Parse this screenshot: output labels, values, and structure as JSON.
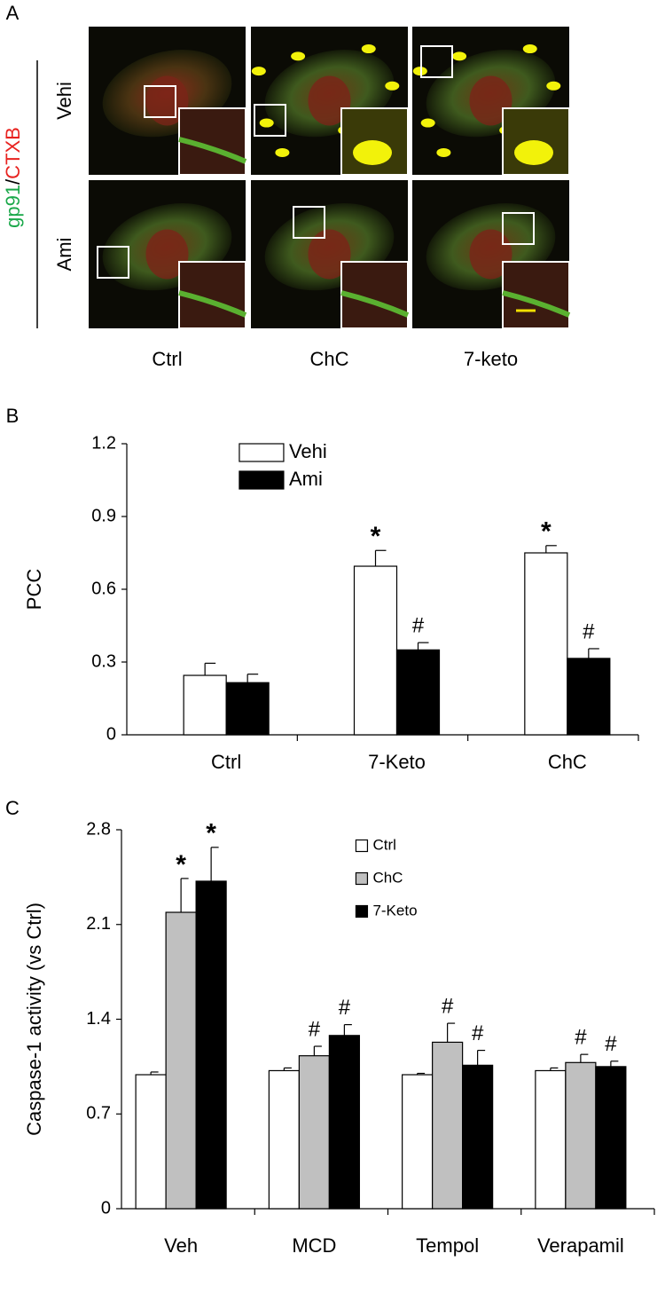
{
  "panel_labels": [
    "A",
    "B",
    "C"
  ],
  "panel_a": {
    "columns": [
      "Ctrl",
      "ChC",
      "7-keto"
    ],
    "rows": [
      "Vehi",
      "Ami"
    ],
    "stain": [
      {
        "text": "gp91",
        "color": "#1aa84a"
      },
      {
        "text": "/",
        "color": "#000000"
      },
      {
        "text": "CTXB",
        "color": "#e8221f"
      }
    ]
  },
  "chart_data": [
    {
      "type": "bar",
      "ylabel": "PCC",
      "categories": [
        "Ctrl",
        "7-Keto",
        "ChC"
      ],
      "series": [
        {
          "name": "Vehi",
          "color": "#ffffff",
          "values": [
            0.245,
            0.695,
            0.75
          ],
          "errors": [
            0.05,
            0.065,
            0.03
          ],
          "significance": [
            null,
            "*",
            "*"
          ]
        },
        {
          "name": "Ami",
          "color": "#000000",
          "values": [
            0.215,
            0.35,
            0.315
          ],
          "errors": [
            0.035,
            0.03,
            0.04
          ],
          "significance": [
            null,
            "#",
            "#"
          ]
        }
      ],
      "ylim": [
        0,
        1.2
      ],
      "yticks": [
        0,
        0.3,
        0.6,
        0.9,
        1.2
      ],
      "legend": "upper left"
    },
    {
      "type": "bar",
      "ylabel": "Caspase-1 activity (vs Ctrl)",
      "categories": [
        "Veh",
        "MCD",
        "Tempol",
        "Verapamil"
      ],
      "series": [
        {
          "name": "Ctrl",
          "color": "#ffffff",
          "values": [
            0.99,
            1.02,
            0.99,
            1.02
          ],
          "errors": [
            0.02,
            0.02,
            0.01,
            0.02
          ],
          "significance": [
            null,
            null,
            null,
            null
          ]
        },
        {
          "name": "ChC",
          "color": "#c0c0c0",
          "values": [
            2.19,
            1.13,
            1.23,
            1.08
          ],
          "errors": [
            0.25,
            0.07,
            0.14,
            0.06
          ],
          "significance": [
            "*",
            "#",
            "#",
            "#"
          ]
        },
        {
          "name": "7-Keto",
          "color": "#000000",
          "values": [
            2.42,
            1.28,
            1.06,
            1.05
          ],
          "errors": [
            0.25,
            0.08,
            0.11,
            0.04
          ],
          "significance": [
            "*",
            "#",
            "#",
            "#"
          ]
        }
      ],
      "ylim": [
        0,
        2.8
      ],
      "yticks": [
        0,
        0.7,
        1.4,
        2.1,
        2.8
      ],
      "legend": "upper center"
    }
  ]
}
